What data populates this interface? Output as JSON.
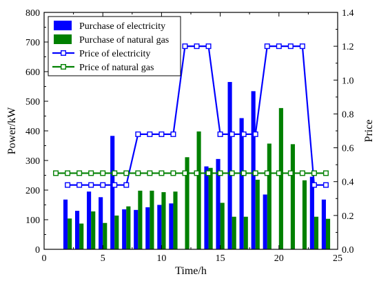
{
  "chart_data": {
    "type": "bar",
    "xlabel": "Time/h",
    "ylabel_left": "Power/kW",
    "ylabel_right": "Price",
    "xlim": [
      0,
      25
    ],
    "ylim_left": [
      0,
      800
    ],
    "ylim_right": [
      0,
      1.4
    ],
    "x_ticks": [
      "0",
      "5",
      "10",
      "15",
      "20",
      "25"
    ],
    "y_left_ticks": [
      "0",
      "100",
      "200",
      "300",
      "400",
      "500",
      "600",
      "700",
      "800"
    ],
    "y_right_ticks": [
      "0.0",
      "0.2",
      "0.4",
      "0.6",
      "0.8",
      "1.0",
      "1.2",
      "1.4"
    ],
    "legend_position": "top-left",
    "x": [
      2,
      3,
      4,
      5,
      6,
      7,
      8,
      9,
      10,
      11,
      12,
      13,
      14,
      15,
      16,
      17,
      18,
      19,
      20,
      21,
      22,
      23,
      24
    ],
    "series": [
      {
        "name": "Purchase of electricity",
        "kind": "bar",
        "axis": "left",
        "color": "#0000ff",
        "values": [
          168,
          130,
          195,
          176,
          383,
          135,
          133,
          142,
          150,
          155,
          0,
          0,
          280,
          305,
          565,
          443,
          534,
          185,
          0,
          0,
          0,
          245,
          168
        ]
      },
      {
        "name": "Purchase of natural gas",
        "kind": "bar",
        "axis": "left",
        "color": "#008000",
        "values": [
          104,
          87,
          128,
          89,
          114,
          145,
          198,
          198,
          193,
          195,
          311,
          398,
          275,
          157,
          110,
          110,
          235,
          357,
          477,
          355,
          233,
          110,
          103
        ]
      },
      {
        "name": "Price of electricity",
        "kind": "line",
        "axis": "right",
        "color": "#0000ff",
        "x": [
          2,
          3,
          4,
          5,
          6,
          7,
          8,
          9,
          10,
          11,
          12,
          13,
          14,
          15,
          16,
          17,
          18,
          19,
          20,
          21,
          22,
          23,
          24
        ],
        "values": [
          0.38,
          0.38,
          0.38,
          0.38,
          0.38,
          0.38,
          0.68,
          0.68,
          0.68,
          0.68,
          1.2,
          1.2,
          1.2,
          0.68,
          0.68,
          0.68,
          0.68,
          1.2,
          1.2,
          1.2,
          1.2,
          0.38,
          0.38
        ]
      },
      {
        "name": "Price of natural gas",
        "kind": "line",
        "axis": "right",
        "color": "#008000",
        "x": [
          1,
          2,
          3,
          4,
          5,
          6,
          7,
          8,
          9,
          10,
          11,
          12,
          13,
          14,
          15,
          16,
          17,
          18,
          19,
          20,
          21,
          22,
          23,
          24
        ],
        "values": [
          0.45,
          0.45,
          0.45,
          0.45,
          0.45,
          0.45,
          0.45,
          0.45,
          0.45,
          0.45,
          0.45,
          0.45,
          0.45,
          0.45,
          0.45,
          0.45,
          0.45,
          0.45,
          0.45,
          0.45,
          0.45,
          0.45,
          0.45,
          0.45
        ]
      }
    ]
  }
}
